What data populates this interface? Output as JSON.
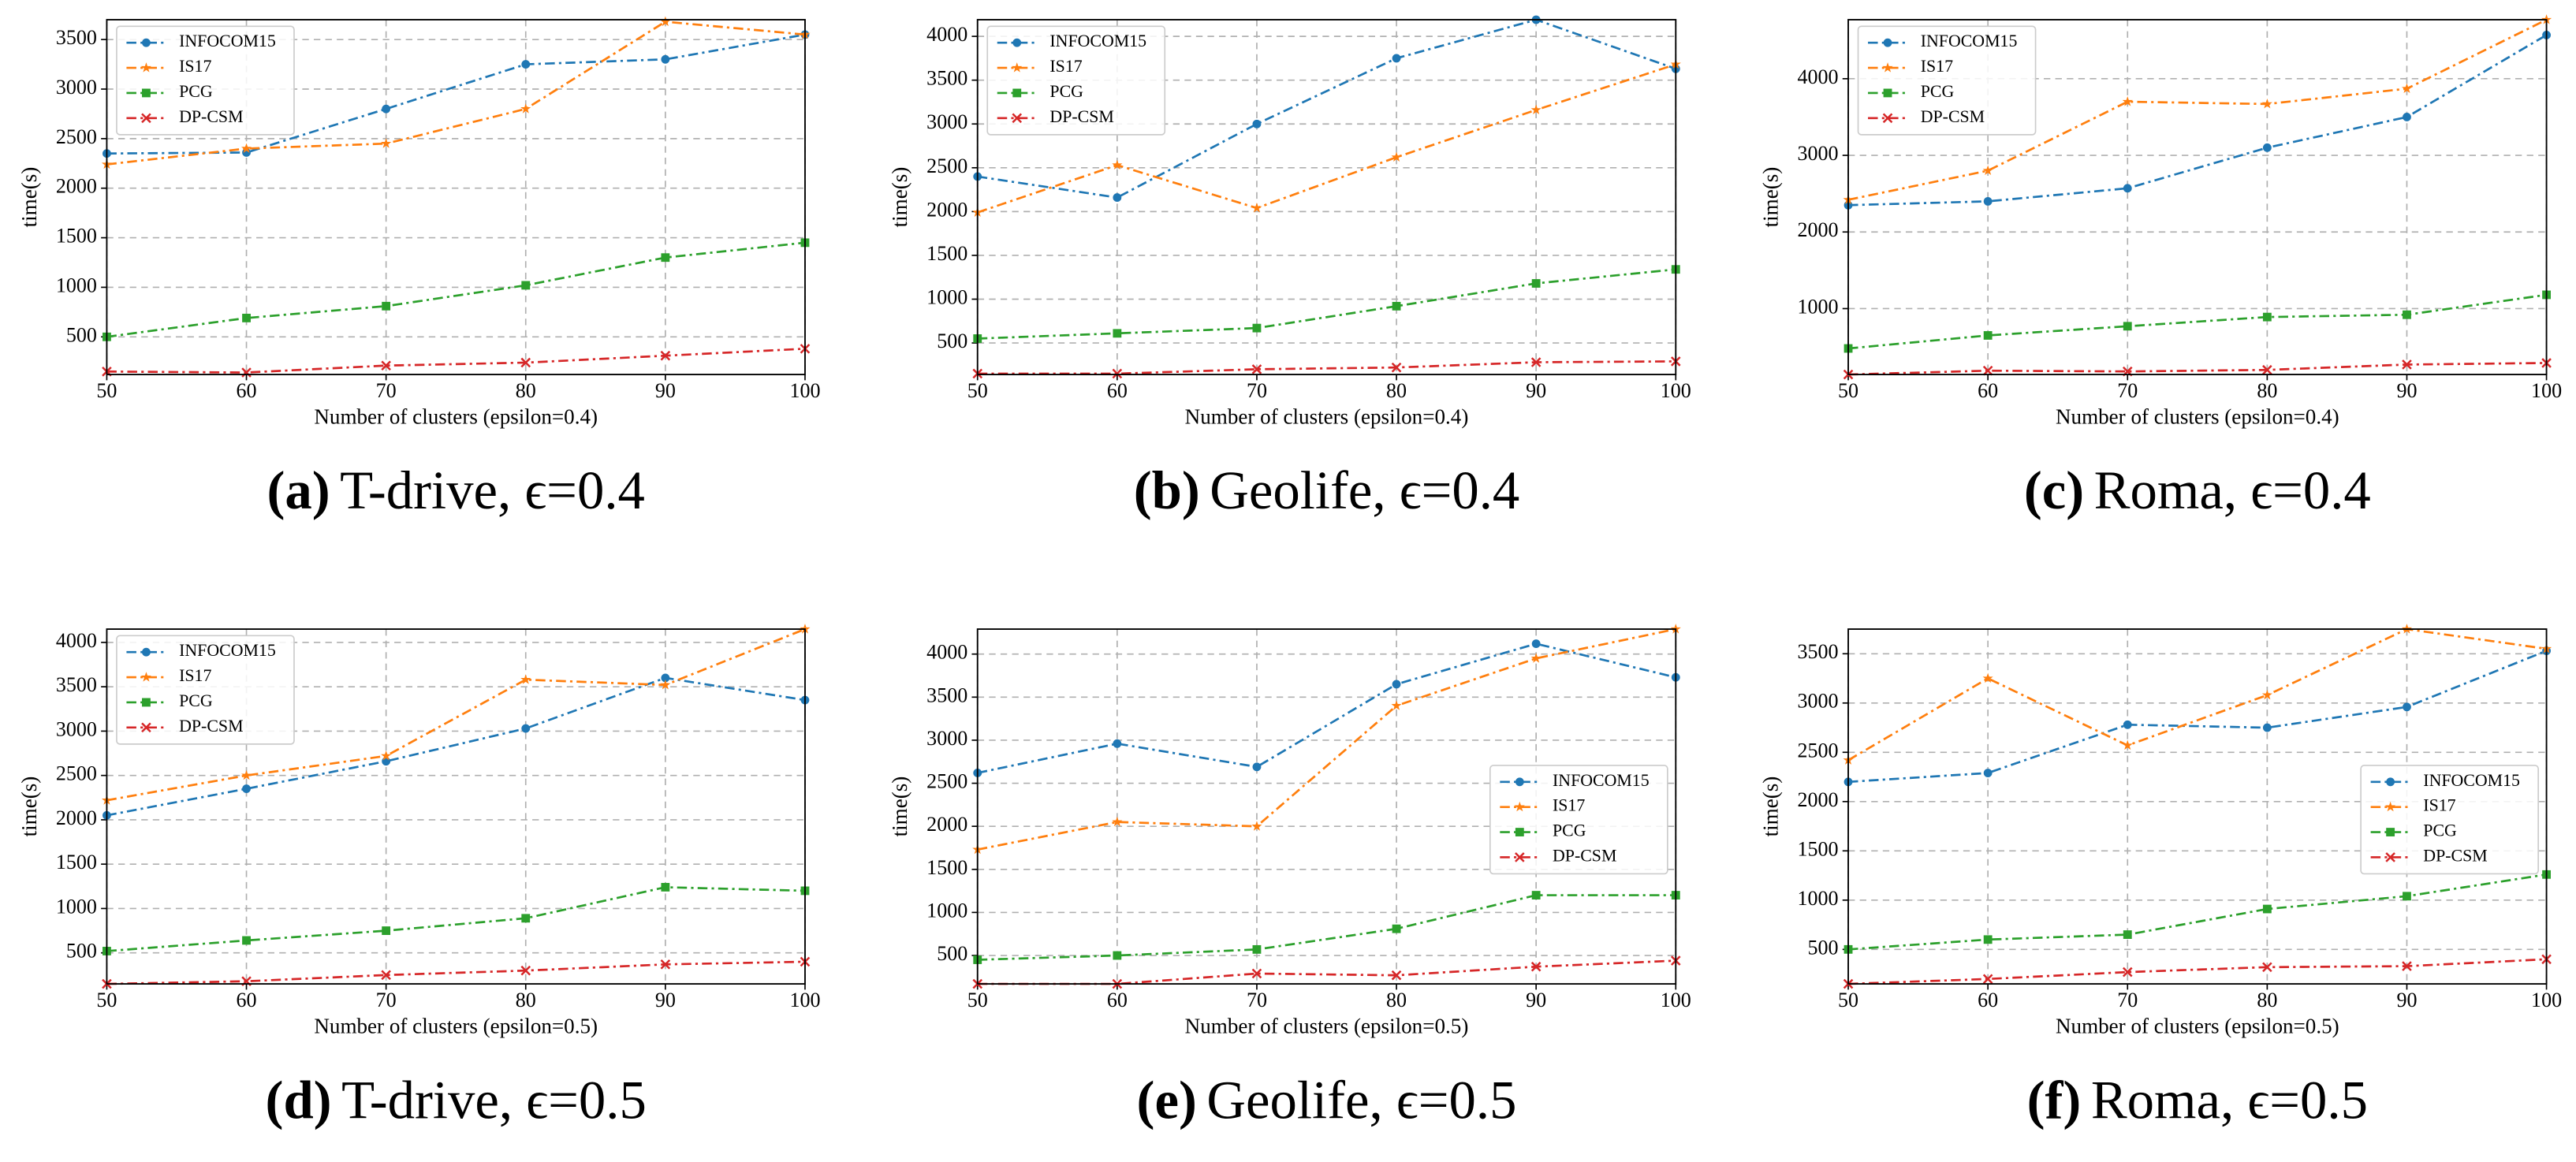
{
  "chart_data": [
    {
      "type": "line",
      "x_label": "Number of clusters (epsilon=0.4)",
      "y_label": "time(s)",
      "caption_label": "(a)",
      "caption": "T-drive, ϵ=0.4",
      "x": [
        50,
        60,
        70,
        80,
        90,
        100
      ],
      "xlim": [
        50,
        100
      ],
      "xticks": [
        50,
        60,
        70,
        80,
        90,
        100
      ],
      "ylim": [
        120,
        3700
      ],
      "yticks": [
        500,
        1000,
        1500,
        2000,
        2500,
        3000,
        3500
      ],
      "grid": true,
      "legend": "upper left",
      "series": [
        {
          "name": "INFOCOM15",
          "color": "#1f77b4",
          "marker": "circle",
          "values": [
            2350,
            2360,
            2800,
            3250,
            3300,
            3550
          ]
        },
        {
          "name": "IS17",
          "color": "#ff7f0e",
          "marker": "star",
          "values": [
            2240,
            2400,
            2450,
            2800,
            3680,
            3550
          ]
        },
        {
          "name": "PCG",
          "color": "#2ca02c",
          "marker": "square",
          "values": [
            500,
            690,
            810,
            1020,
            1300,
            1450
          ]
        },
        {
          "name": "DP-CSM",
          "color": "#d62728",
          "marker": "x",
          "values": [
            150,
            140,
            210,
            240,
            310,
            380
          ]
        }
      ]
    },
    {
      "type": "line",
      "x_label": "Number of clusters (epsilon=0.4)",
      "y_label": "time(s)",
      "caption_label": "(b)",
      "caption": "Geolife, ϵ=0.4",
      "x": [
        50,
        60,
        70,
        80,
        90,
        100
      ],
      "xlim": [
        50,
        100
      ],
      "xticks": [
        50,
        60,
        70,
        80,
        90,
        100
      ],
      "ylim": [
        140,
        4190
      ],
      "yticks": [
        500,
        1000,
        1500,
        2000,
        2500,
        3000,
        3500,
        4000
      ],
      "grid": true,
      "legend": "upper left",
      "series": [
        {
          "name": "INFOCOM15",
          "color": "#1f77b4",
          "marker": "circle",
          "values": [
            2400,
            2160,
            3000,
            3750,
            4190,
            3630
          ]
        },
        {
          "name": "IS17",
          "color": "#ff7f0e",
          "marker": "star",
          "values": [
            1990,
            2530,
            2040,
            2620,
            3160,
            3680
          ]
        },
        {
          "name": "PCG",
          "color": "#2ca02c",
          "marker": "square",
          "values": [
            550,
            610,
            670,
            920,
            1180,
            1340
          ]
        },
        {
          "name": "DP-CSM",
          "color": "#d62728",
          "marker": "x",
          "values": [
            150,
            150,
            200,
            220,
            280,
            290
          ]
        }
      ]
    },
    {
      "type": "line",
      "x_label": "Number of clusters (epsilon=0.4)",
      "y_label": "time(s)",
      "caption_label": "(c)",
      "caption": "Roma, ϵ=0.4",
      "x": [
        50,
        60,
        70,
        80,
        90,
        100
      ],
      "xlim": [
        50,
        100
      ],
      "xticks": [
        50,
        60,
        70,
        80,
        90,
        100
      ],
      "ylim": [
        140,
        4770
      ],
      "yticks": [
        1000,
        2000,
        3000,
        4000
      ],
      "grid": true,
      "legend": "upper left",
      "series": [
        {
          "name": "INFOCOM15",
          "color": "#1f77b4",
          "marker": "circle",
          "values": [
            2350,
            2400,
            2570,
            3100,
            3500,
            4570
          ]
        },
        {
          "name": "IS17",
          "color": "#ff7f0e",
          "marker": "star",
          "values": [
            2420,
            2800,
            3700,
            3670,
            3870,
            4770
          ]
        },
        {
          "name": "PCG",
          "color": "#2ca02c",
          "marker": "square",
          "values": [
            480,
            650,
            770,
            890,
            920,
            1180
          ]
        },
        {
          "name": "DP-CSM",
          "color": "#d62728",
          "marker": "x",
          "values": [
            140,
            190,
            180,
            200,
            270,
            290
          ]
        }
      ]
    },
    {
      "type": "line",
      "x_label": "Number of clusters (epsilon=0.5)",
      "y_label": "time(s)",
      "caption_label": "(d)",
      "caption": "T-drive, ϵ=0.5",
      "x": [
        50,
        60,
        70,
        80,
        90,
        100
      ],
      "xlim": [
        50,
        100
      ],
      "xticks": [
        50,
        60,
        70,
        80,
        90,
        100
      ],
      "ylim": [
        150,
        4150
      ],
      "yticks": [
        500,
        1000,
        1500,
        2000,
        2500,
        3000,
        3500,
        4000
      ],
      "grid": true,
      "legend": "upper left",
      "series": [
        {
          "name": "INFOCOM15",
          "color": "#1f77b4",
          "marker": "circle",
          "values": [
            2050,
            2350,
            2660,
            3030,
            3600,
            3350
          ]
        },
        {
          "name": "IS17",
          "color": "#ff7f0e",
          "marker": "star",
          "values": [
            2220,
            2500,
            2720,
            3580,
            3520,
            4150
          ]
        },
        {
          "name": "PCG",
          "color": "#2ca02c",
          "marker": "square",
          "values": [
            520,
            640,
            750,
            890,
            1240,
            1200
          ]
        },
        {
          "name": "DP-CSM",
          "color": "#d62728",
          "marker": "x",
          "values": [
            150,
            180,
            250,
            300,
            370,
            400
          ]
        }
      ]
    },
    {
      "type": "line",
      "x_label": "Number of clusters (epsilon=0.5)",
      "y_label": "time(s)",
      "caption_label": "(e)",
      "caption": "Geolife, ϵ=0.5",
      "x": [
        50,
        60,
        70,
        80,
        90,
        100
      ],
      "xlim": [
        50,
        100
      ],
      "xticks": [
        50,
        60,
        70,
        80,
        90,
        100
      ],
      "ylim": [
        170,
        4290
      ],
      "yticks": [
        500,
        1000,
        1500,
        2000,
        2500,
        3000,
        3500,
        4000
      ],
      "grid": true,
      "legend": "center right",
      "series": [
        {
          "name": "INFOCOM15",
          "color": "#1f77b4",
          "marker": "circle",
          "values": [
            2620,
            2960,
            2690,
            3650,
            4120,
            3730
          ]
        },
        {
          "name": "IS17",
          "color": "#ff7f0e",
          "marker": "star",
          "values": [
            1730,
            2050,
            2000,
            3400,
            3950,
            4290
          ]
        },
        {
          "name": "PCG",
          "color": "#2ca02c",
          "marker": "square",
          "values": [
            450,
            500,
            570,
            810,
            1200,
            1200
          ]
        },
        {
          "name": "DP-CSM",
          "color": "#d62728",
          "marker": "x",
          "values": [
            170,
            170,
            290,
            270,
            370,
            440
          ]
        }
      ]
    },
    {
      "type": "line",
      "x_label": "Number of clusters (epsilon=0.5)",
      "y_label": "time(s)",
      "caption_label": "(f)",
      "caption": "Roma, ϵ=0.5",
      "x": [
        50,
        60,
        70,
        80,
        90,
        100
      ],
      "xlim": [
        50,
        100
      ],
      "xticks": [
        50,
        60,
        70,
        80,
        90,
        100
      ],
      "ylim": [
        150,
        3750
      ],
      "yticks": [
        500,
        1000,
        1500,
        2000,
        2500,
        3000,
        3500
      ],
      "grid": true,
      "legend": "center right",
      "series": [
        {
          "name": "INFOCOM15",
          "color": "#1f77b4",
          "marker": "circle",
          "values": [
            2200,
            2290,
            2780,
            2750,
            2960,
            3530
          ]
        },
        {
          "name": "IS17",
          "color": "#ff7f0e",
          "marker": "star",
          "values": [
            2420,
            3250,
            2570,
            3080,
            3750,
            3550
          ]
        },
        {
          "name": "PCG",
          "color": "#2ca02c",
          "marker": "square",
          "values": [
            500,
            600,
            650,
            910,
            1040,
            1260
          ]
        },
        {
          "name": "DP-CSM",
          "color": "#d62728",
          "marker": "x",
          "values": [
            150,
            200,
            270,
            320,
            330,
            400
          ]
        }
      ]
    }
  ]
}
